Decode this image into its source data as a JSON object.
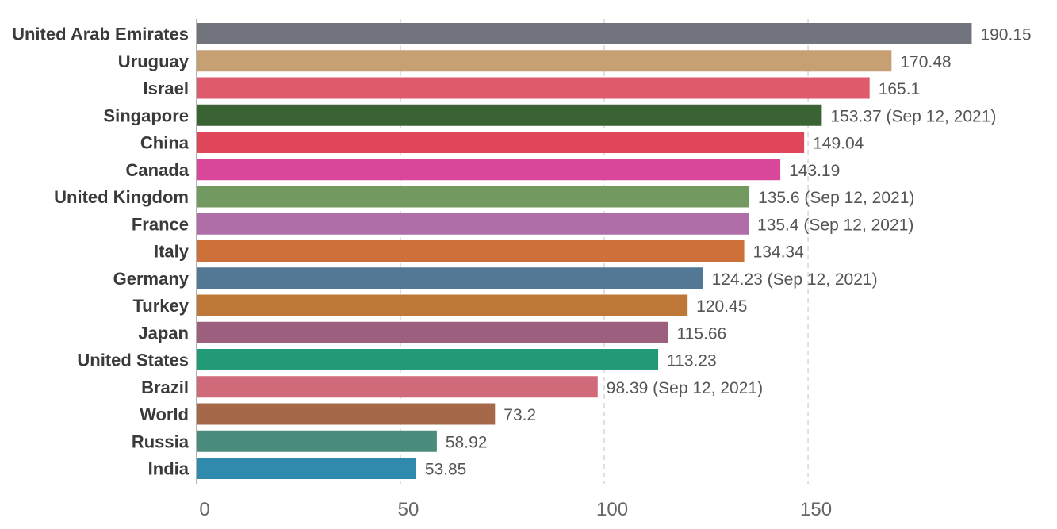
{
  "chart_data": {
    "type": "bar",
    "orientation": "horizontal",
    "title": "",
    "xlabel": "",
    "ylabel": "",
    "xlim": [
      0,
      190.15
    ],
    "grid": true,
    "x_ticks": [
      {
        "value": 0,
        "label": "0"
      },
      {
        "value": 50,
        "label": "50"
      },
      {
        "value": 100,
        "label": "100"
      },
      {
        "value": 150,
        "label": "150"
      }
    ],
    "categories": [
      "United Arab Emirates",
      "Uruguay",
      "Israel",
      "Singapore",
      "China",
      "Canada",
      "United Kingdom",
      "France",
      "Italy",
      "Germany",
      "Turkey",
      "Japan",
      "United States",
      "Brazil",
      "World",
      "Russia",
      "India"
    ],
    "values": [
      190.15,
      170.48,
      165.1,
      153.37,
      149.04,
      143.19,
      135.6,
      135.4,
      134.34,
      124.23,
      120.45,
      115.66,
      113.23,
      98.39,
      73.2,
      58.92,
      53.85
    ],
    "value_labels": [
      "190.15",
      "170.48",
      "165.1",
      "153.37 (Sep 12, 2021)",
      "149.04",
      "143.19",
      "135.6 (Sep 12, 2021)",
      "135.4 (Sep 12, 2021)",
      "134.34",
      "124.23 (Sep 12, 2021)",
      "120.45",
      "115.66",
      "113.23",
      "98.39 (Sep 12, 2021)",
      "73.2",
      "58.92",
      "53.85"
    ],
    "colors": [
      "#71737d",
      "#c69f73",
      "#df5b6c",
      "#3a6333",
      "#df4659",
      "#d8479a",
      "#729a60",
      "#b06ea8",
      "#cd703a",
      "#537896",
      "#bd7837",
      "#9c5f7e",
      "#229a77",
      "#d06a7a",
      "#a5694a",
      "#4a8b7e",
      "#2f8aad"
    ]
  }
}
